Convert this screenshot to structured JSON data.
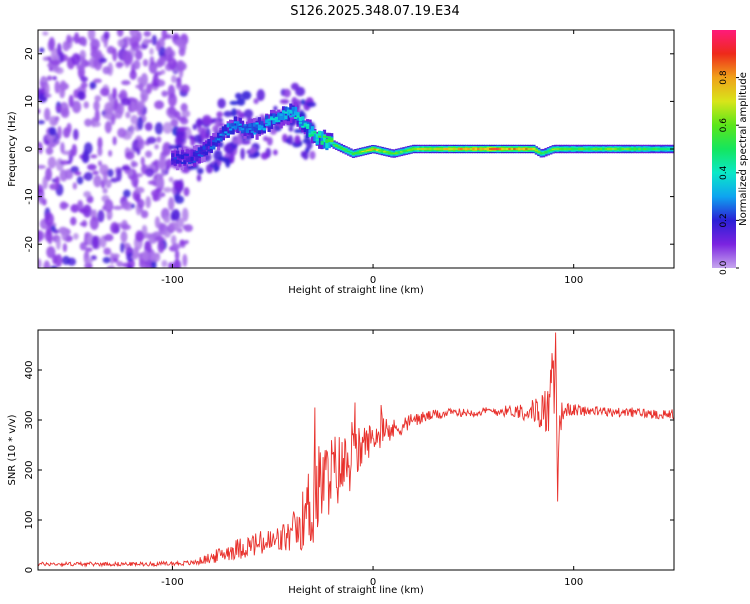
{
  "title": "S126.2025.348.07.19.E34",
  "colors": {
    "background": "#ffffff",
    "axis": "#000000",
    "snr_line": "#e8312c"
  },
  "chart_data": [
    {
      "type": "heatmap",
      "title": "S126.2025.348.07.19.E34",
      "xlabel": "Height of straight line (km)",
      "ylabel": "Frequency (Hz)",
      "xlim": [
        -167,
        150
      ],
      "ylim": [
        -25,
        25
      ],
      "xticks": [
        -100,
        0,
        100
      ],
      "xtick_labels": [
        "-100",
        "0",
        "100"
      ],
      "yticks": [
        -20,
        -10,
        0,
        10,
        20
      ],
      "ytick_labels": [
        "-20",
        "-10",
        "0",
        "10",
        "20"
      ],
      "ridge": {
        "description": "Frequency of peak spectral energy vs height",
        "x": [
          -90,
          -80,
          -70,
          -60,
          -50,
          -40,
          -30,
          -20,
          -10,
          0,
          10,
          20,
          40,
          60,
          80,
          84,
          90,
          100,
          120,
          150
        ],
        "y": [
          -2,
          1,
          5,
          4,
          6,
          8,
          3,
          1,
          -1,
          0,
          -1,
          0,
          0,
          0,
          0,
          -1,
          0,
          0,
          0,
          0
        ],
        "peak_amplitude": [
          0.2,
          0.25,
          0.3,
          0.3,
          0.35,
          0.35,
          0.45,
          0.55,
          0.55,
          0.75,
          0.55,
          0.65,
          0.75,
          0.85,
          0.75,
          0.5,
          0.6,
          0.55,
          0.6,
          0.5
        ]
      },
      "colorbar": {
        "label": "Normalized spectral amplitude",
        "range": [
          0.0,
          1.0
        ],
        "ticks": [
          0.0,
          0.2,
          0.4,
          0.6,
          0.8
        ],
        "tick_labels": [
          "0.0",
          "0.2",
          "0.4",
          "0.6",
          "0.8"
        ],
        "colors": [
          "#c6a6ee",
          "#7b23e0",
          "#2b1fd6",
          "#0ea4f0",
          "#0be8c8",
          "#14e65e",
          "#5ce61a",
          "#d8e51a",
          "#f0a21a",
          "#ee2a1a",
          "#ff1a7a"
        ]
      }
    },
    {
      "type": "line",
      "xlabel": "Height of straight line (km)",
      "ylabel": "SNR (10 * v/v)",
      "xlim": [
        -167,
        150
      ],
      "ylim": [
        0,
        480
      ],
      "xticks": [
        -100,
        0,
        100
      ],
      "xtick_labels": [
        "-100",
        "0",
        "100"
      ],
      "yticks": [
        0,
        100,
        200,
        300,
        400
      ],
      "ytick_labels": [
        "0",
        "100",
        "200",
        "300",
        "400"
      ],
      "series": [
        {
          "name": "SNR",
          "x": [
            -167,
            -140,
            -110,
            -90,
            -80,
            -70,
            -60,
            -50,
            -40,
            -35,
            -30,
            -25,
            -20,
            -15,
            -10,
            -5,
            0,
            10,
            20,
            30,
            40,
            50,
            60,
            70,
            80,
            85,
            88,
            90,
            91,
            92,
            93,
            95,
            100,
            110,
            120,
            130,
            140,
            150
          ],
          "y": [
            12,
            12,
            12,
            14,
            25,
            40,
            50,
            55,
            70,
            100,
            140,
            175,
            195,
            205,
            220,
            250,
            265,
            280,
            300,
            310,
            315,
            315,
            318,
            318,
            318,
            318,
            330,
            360,
            410,
            200,
            300,
            320,
            320,
            318,
            315,
            315,
            312,
            312
          ],
          "noise_amplitude": [
            4,
            4,
            4,
            5,
            12,
            20,
            25,
            30,
            35,
            60,
            110,
            80,
            80,
            70,
            60,
            40,
            30,
            22,
            15,
            10,
            8,
            8,
            10,
            12,
            25,
            40,
            70,
            100,
            70,
            90,
            40,
            15,
            12,
            10,
            10,
            10,
            10,
            10
          ],
          "notable_points": [
            {
              "x": 91,
              "y": 475
            },
            {
              "x": 92,
              "y": 137
            },
            {
              "x": -29,
              "y": 325
            },
            {
              "x": -9,
              "y": 335
            },
            {
              "x": 4,
              "y": 330
            }
          ]
        }
      ]
    }
  ]
}
